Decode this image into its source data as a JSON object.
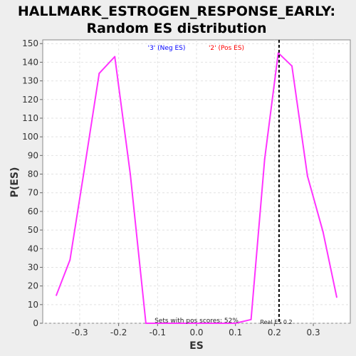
{
  "chart_data": {
    "type": "line",
    "title_line1": "HALLMARK_ESTROGEN_RESPONSE_EARLY:",
    "title_line2": "Random ES distribution",
    "xlabel": "ES",
    "ylabel": "P(ES)",
    "xlim": [
      -0.395,
      0.395
    ],
    "ylim": [
      0,
      152
    ],
    "xticks": [
      -0.3,
      -0.2,
      -0.1,
      0.0,
      0.1,
      0.2,
      0.3
    ],
    "xtick_labels": [
      "-0.3",
      "-0.2",
      "-0.1",
      "0.0",
      "0.1",
      "0.2",
      "0.3"
    ],
    "yticks": [
      0,
      10,
      20,
      30,
      40,
      50,
      60,
      70,
      80,
      90,
      100,
      110,
      120,
      130,
      140,
      150
    ],
    "grid": true,
    "series": [
      {
        "color": "#ff33ff",
        "x": [
          -0.36,
          -0.325,
          -0.29,
          -0.25,
          -0.21,
          -0.17,
          -0.13,
          -0.095,
          -0.055,
          -0.015,
          0.025,
          0.065,
          0.1,
          0.14,
          0.175,
          0.21,
          0.245,
          0.285,
          0.325,
          0.36
        ],
        "y": [
          15,
          34,
          80,
          134,
          143,
          80,
          0,
          0,
          0,
          0,
          0,
          0,
          0,
          2,
          88,
          145,
          138,
          79,
          49,
          14
        ]
      }
    ],
    "legend": [
      {
        "label": "'3' (Neg ES)",
        "color": "#0000ff"
      },
      {
        "label": "'2' (Pos ES)",
        "color": "#ff0000"
      }
    ],
    "real_es": 0.212,
    "real_es_label": "Real ES 0.2",
    "pos_scores_label": "Sets with pos scores: 52%"
  }
}
